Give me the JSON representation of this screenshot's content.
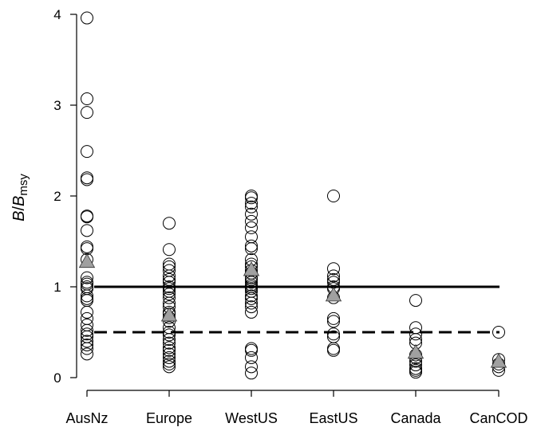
{
  "chart_data": {
    "type": "scatter",
    "title": "",
    "xlabel": "",
    "ylabel": {
      "italic_parts": [
        "B",
        "/",
        "B"
      ],
      "subscript": "msy"
    },
    "ylim": [
      0,
      4
    ],
    "yticks": [
      "0",
      "1",
      "2",
      "3",
      "4"
    ],
    "grid": false,
    "categories": [
      "AusNz",
      "Europe",
      "WestUS",
      "EastUS",
      "Canada",
      "CanCOD"
    ],
    "series": [
      {
        "marker": "open-circle",
        "points": [
          [
            "AusNz",
            [
              3.96,
              3.07,
              2.92,
              2.49,
              2.2,
              2.18,
              1.78,
              1.77,
              1.62,
              1.44,
              1.42,
              1.3,
              1.1,
              1.05,
              1.03,
              1.0,
              0.98,
              0.9,
              0.87,
              0.85,
              0.72,
              0.65,
              0.58,
              0.52,
              0.48,
              0.45,
              0.4,
              0.36,
              0.32,
              0.26
            ]
          ],
          [
            "Europe",
            [
              1.7,
              1.41,
              1.25,
              1.22,
              1.18,
              1.12,
              1.08,
              1.05,
              1.0,
              0.98,
              0.95,
              0.92,
              0.88,
              0.82,
              0.78,
              0.72,
              0.7,
              0.66,
              0.62,
              0.55,
              0.5,
              0.47,
              0.42,
              0.38,
              0.33,
              0.3,
              0.26,
              0.22,
              0.18,
              0.15,
              0.12
            ]
          ],
          [
            "WestUS",
            [
              2.0,
              1.98,
              1.92,
              1.88,
              1.8,
              1.72,
              1.65,
              1.55,
              1.45,
              1.42,
              1.3,
              1.25,
              1.22,
              1.18,
              1.15,
              1.1,
              1.08,
              1.05,
              1.02,
              1.0,
              0.98,
              0.95,
              0.9,
              0.87,
              0.82,
              0.78,
              0.72,
              0.32,
              0.3,
              0.22,
              0.12,
              0.05
            ]
          ],
          [
            "EastUS",
            [
              2.0,
              1.2,
              1.12,
              1.08,
              1.05,
              1.0,
              0.98,
              0.88,
              0.65,
              0.62,
              0.48,
              0.45,
              0.32,
              0.3
            ]
          ],
          [
            "Canada",
            [
              0.85,
              0.55,
              0.48,
              0.42,
              0.38,
              0.25,
              0.22,
              0.18,
              0.14,
              0.1,
              0.08,
              0.06
            ]
          ],
          [
            "CanCOD",
            [
              0.5,
              0.2,
              0.15,
              0.12,
              0.08
            ]
          ]
        ]
      },
      {
        "marker": "filled-triangle",
        "color": "#a0a0a0",
        "points": [
          [
            "AusNz",
            1.27
          ],
          [
            "Europe",
            0.68
          ],
          [
            "WestUS",
            1.18
          ],
          [
            "EastUS",
            0.9
          ],
          [
            "Canada",
            0.27
          ],
          [
            "CanCOD",
            0.17
          ]
        ]
      }
    ],
    "reference_lines": [
      {
        "y": 1.0,
        "style": "solid"
      },
      {
        "y": 0.5,
        "style": "dashed"
      }
    ]
  }
}
